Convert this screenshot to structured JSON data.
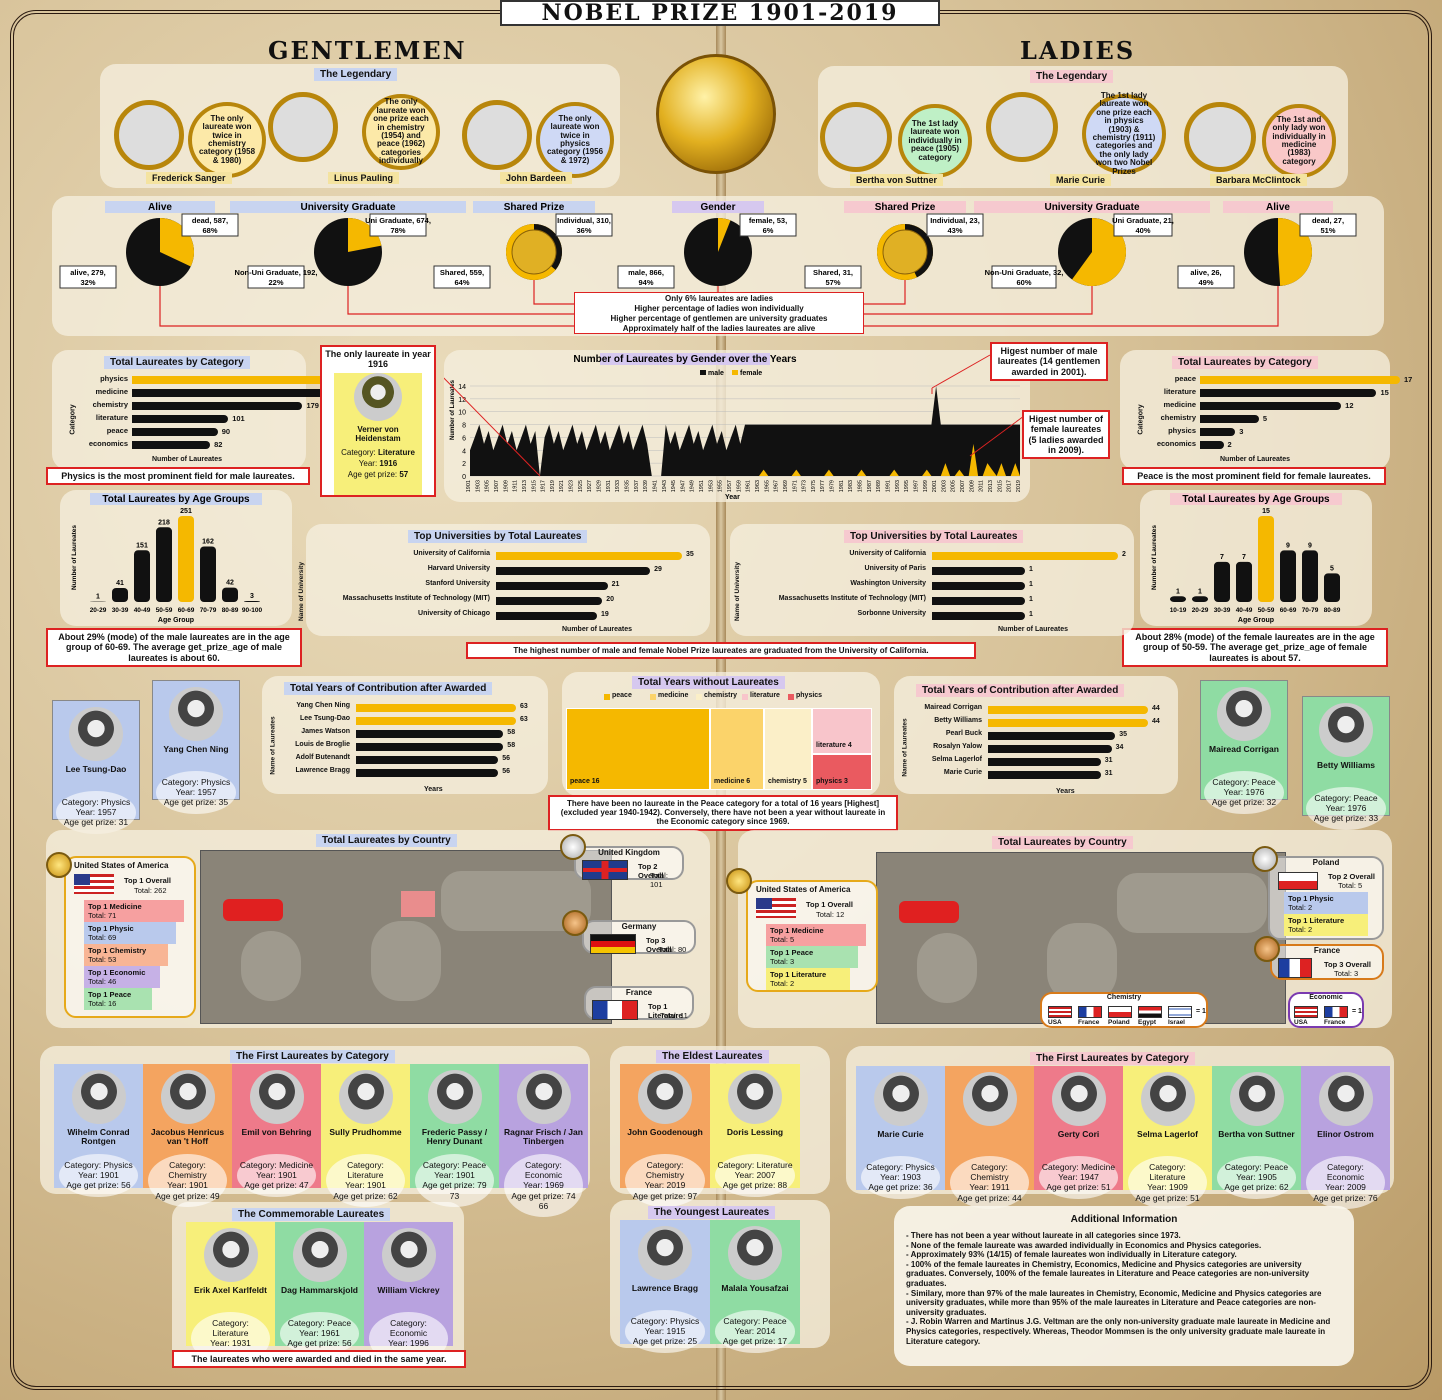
{
  "header": {
    "title": "NOBEL PRIZE 1901-2019",
    "left": "GENTLEMEN",
    "right": "LADIES"
  },
  "legendary": {
    "title": "The Legendary",
    "men": [
      {
        "name": "Frederick Sanger",
        "text": "The only laureate won twice in chemistry category (1958 & 1980)"
      },
      {
        "name": "Linus Pauling",
        "text": "The only laureate won one prize each in chemistry (1954) and peace (1962) categories individually"
      },
      {
        "name": "John Bardeen",
        "text": "The only laureate won twice in physics category (1956 & 1972)"
      }
    ],
    "women": [
      {
        "name": "Bertha von Suttner",
        "text": "The 1st lady laureate won individually in peace (1905) category"
      },
      {
        "name": "Marie Curie",
        "text": "The 1st lady laureate won one prize each in physics (1903) & chemistry (1911) categories and the only lady won two Nobel Prizes"
      },
      {
        "name": "Barbara McClintock",
        "text": "The 1st and only lady won individually in medicine (1983) category"
      }
    ]
  },
  "pies": [
    {
      "title": "Alive",
      "a": "dead, 587, 68%",
      "b": "alive, 279, 32%",
      "frac": 0.32
    },
    {
      "title": "University Graduate",
      "a": "Uni Graduate, 674, 78%",
      "b": "Non-Uni Graduate, 192, 22%",
      "frac": 0.22
    },
    {
      "title": "Shared Prize",
      "a": "Individual, 310, 36%",
      "b": "Shared, 559, 64%",
      "frac": 0.36
    },
    {
      "title": "Gender",
      "a": "female, 53, 6%",
      "b": "male, 866, 94%",
      "frac": 0.06
    },
    {
      "title": "Shared Prize",
      "a": "Individual, 23, 43%",
      "b": "Shared, 31, 57%",
      "frac": 0.43
    },
    {
      "title": "University Graduate",
      "a": "Uni Graduate, 21, 40%",
      "b": "Non-Uni Graduate, 32, 60%",
      "frac": 0.6
    },
    {
      "title": "Alive",
      "a": "dead, 27, 51%",
      "b": "alive, 26, 49%",
      "frac": 0.49
    }
  ],
  "pie_summary": [
    "Only 6% laureates are ladies",
    "Higher percentage of ladies won individually",
    "Higher percentage of gentlemen are university graduates",
    "Approximately half of the ladies laureates are alive"
  ],
  "chart_data": [
    {
      "type": "bar",
      "title": "Total Laureates by Category",
      "ylabel": "Category",
      "xlabel": "Number of Laureates",
      "categories": [
        "physics",
        "medicine",
        "chemistry",
        "literature",
        "peace",
        "economics"
      ],
      "values": [
        210,
        207,
        179,
        101,
        90,
        82
      ]
    },
    {
      "type": "bar",
      "title": "Total Laureates by Category",
      "ylabel": "Category",
      "xlabel": "Number of Laureates",
      "categories": [
        "peace",
        "literature",
        "medicine",
        "chemistry",
        "physics",
        "economics"
      ],
      "values": [
        17,
        15,
        12,
        5,
        3,
        2
      ]
    },
    {
      "type": "area",
      "title": "Number of Laureates by Gender over the Years",
      "xlabel": "Year",
      "ylabel": "Number of Laureates",
      "series": [
        {
          "name": "male"
        },
        {
          "name": "female"
        }
      ],
      "ylim": [
        0,
        14
      ],
      "x_ticks": [
        "1901",
        "1903",
        "1905",
        "1907",
        "1909",
        "1911",
        "1913",
        "1915",
        "1917",
        "1919",
        "1921",
        "1923",
        "1925",
        "1927",
        "1929",
        "1931",
        "1933",
        "1935",
        "1937",
        "1939",
        "1941",
        "1943",
        "1945",
        "1947",
        "1949",
        "1951",
        "1953",
        "1955",
        "1957",
        "1959",
        "1961",
        "1963",
        "1965",
        "1967",
        "1969",
        "1971",
        "1973",
        "1975",
        "1977",
        "1979",
        "1981",
        "1983",
        "1985",
        "1987",
        "1989",
        "1991",
        "1993",
        "1995",
        "1997",
        "1999",
        "2001",
        "2003",
        "2005",
        "2007",
        "2009",
        "2011",
        "2013",
        "2015",
        "2017",
        "2019"
      ],
      "y_ticks": [
        "0",
        "2",
        "4",
        "6",
        "8",
        "10",
        "12",
        "14"
      ]
    },
    {
      "type": "bar",
      "title": "Total Laureates by Age Groups",
      "xlabel": "Age Group",
      "ylabel": "Number of Laureates",
      "categories": [
        "20-29",
        "30-39",
        "40-49",
        "50-59",
        "60-69",
        "70-79",
        "80-89",
        "90-100"
      ],
      "values": [
        1,
        41,
        151,
        218,
        251,
        162,
        42,
        3
      ]
    },
    {
      "type": "bar",
      "title": "Total Laureates by Age Groups",
      "xlabel": "Age Group",
      "ylabel": "Number of Laureates",
      "categories": [
        "10-19",
        "20-29",
        "30-39",
        "40-49",
        "50-59",
        "60-69",
        "70-79",
        "80-89"
      ],
      "values": [
        1,
        1,
        7,
        7,
        15,
        9,
        9,
        5
      ]
    },
    {
      "type": "bar",
      "title": "Top Universities by Total Laureates",
      "xlabel": "Number of Laureates",
      "ylabel": "Name of University",
      "categories": [
        "University of California",
        "Harvard University",
        "Stanford University",
        "Massachusetts Institute of Technology (MIT)",
        "University of Chicago"
      ],
      "values": [
        35,
        29,
        21,
        20,
        19
      ]
    },
    {
      "type": "bar",
      "title": "Top Universities by Total Laureates",
      "xlabel": "Number of Laureates",
      "ylabel": "Name of University",
      "categories": [
        "University of California",
        "University of Paris",
        "Washington University",
        "Massachusetts Institute of Technology (MIT)",
        "Sorbonne University"
      ],
      "values": [
        2,
        1,
        1,
        1,
        1
      ]
    },
    {
      "type": "bar",
      "title": "Total Years of Contribution after Awarded",
      "xlabel": "Years",
      "ylabel": "Name of Laureates",
      "categories": [
        "Yang Chen Ning",
        "Lee Tsung-Dao",
        "James Watson",
        "Louis de Broglie",
        "Adolf Butenandt",
        "Lawrence Bragg"
      ],
      "values": [
        63,
        63,
        58,
        58,
        56,
        56
      ]
    },
    {
      "type": "bar",
      "title": "Total Years of Contribution after Awarded",
      "xlabel": "Years",
      "ylabel": "Name of Laureates",
      "categories": [
        "Mairead Corrigan",
        "Betty Williams",
        "Pearl Buck",
        "Rosalyn Yalow",
        "Selma Lagerlof",
        "Marie Curie"
      ],
      "values": [
        44,
        44,
        35,
        34,
        31,
        31
      ]
    },
    {
      "type": "heatmap",
      "title": "Total Years without Laureates",
      "categories": [
        "peace",
        "medicine",
        "chemistry",
        "literature",
        "physics"
      ],
      "values": [
        16,
        6,
        5,
        4,
        3
      ]
    }
  ],
  "notes": {
    "male_cat": "Physics is the most prominent field for male laureates.",
    "female_cat": "Peace is the most prominent field for female laureates.",
    "only1916": "The only laureate in year 1916",
    "max_male": "Higest number of male laureates (14 gentlemen awarded in 2001).",
    "max_female": "Higest number of female laureates (5 ladies awarded in 2009).",
    "age_male": "About 29% (mode) of the male laureates are in the age group of 60-69. The average get_prize_age of male laureates is about 60.",
    "age_female": "About 28% (mode) of the female laureates are in the age group of 50-59. The average get_prize_age of female laureates is about 57.",
    "uni": "The highest number of male and female Nobel Prize laureates are graduated from the University of California.",
    "noyears": "There have been no laureate in the Peace category for a total of 16 years [Highest] (excluded year 1940-1942). Conversely, there have not been a year without laureate in the Economic category since 1969.",
    "commem": "The laureates who were awarded and died in the same year."
  },
  "treemap_labels": {
    "peace": "peace 16",
    "medicine": "medicine 6",
    "chemistry": "chemistry 5",
    "literature": "literature 4",
    "physics": "physics 3"
  },
  "country": {
    "title": "Total Laureates by Country",
    "men": {
      "usa": {
        "name": "United States of America",
        "top": "Top 1 Overall",
        "total": "Total: 262"
      },
      "subs": [
        [
          "Top 1 Medicine",
          "Total: 71"
        ],
        [
          "Top 1 Physic",
          "Total: 69"
        ],
        [
          "Top 1 Chemistry",
          "Total: 53"
        ],
        [
          "Top 1 Economic",
          "Total: 46"
        ],
        [
          "Top 1 Peace",
          "Total: 16"
        ]
      ],
      "uk": {
        "name": "United Kingdom",
        "top": "Top 2 Overall",
        "total": "Total: 101"
      },
      "de": {
        "name": "Germany",
        "top": "Top 3 Overall",
        "total": "Total: 80"
      },
      "fr": {
        "name": "France",
        "top": "Top 1 Literature",
        "total": "Total: 11"
      }
    },
    "women": {
      "usa": {
        "name": "United States of America",
        "top": "Top 1 Overall",
        "total": "Total: 12"
      },
      "subs": [
        [
          "Top 1 Medicine",
          "Total: 5"
        ],
        [
          "Top 1 Peace",
          "Total: 3"
        ],
        [
          "Top 1 Literature",
          "Total: 2"
        ]
      ],
      "pl": {
        "name": "Poland",
        "top": "Top 2 Overall",
        "total": "Total: 5"
      },
      "plsubs": [
        [
          "Top 1 Physic",
          "Total: 2"
        ],
        [
          "Top 1 Literature",
          "Total: 2"
        ]
      ],
      "fr": {
        "name": "France",
        "top": "Top 3 Overall",
        "total": "Total: 3"
      },
      "chem": {
        "title": "Chemistry",
        "flags": [
          "USA",
          "France",
          "Poland",
          "Egypt",
          "Israel"
        ],
        "eq": "= 1"
      },
      "econ": {
        "title": "Economic",
        "flags": [
          "USA",
          "France"
        ],
        "eq": "= 1"
      }
    }
  },
  "first_men": {
    "title": "The First Laureates by Category",
    "items": [
      {
        "name": "Wihelm Conrad Rontgen",
        "cat": "Physics",
        "year": "1901",
        "age": "56",
        "color": "#b9c9ec"
      },
      {
        "name": "Jacobus Henricus van 't Hoff",
        "cat": "Chemistry",
        "year": "1901",
        "age": "49",
        "color": "#f4a460"
      },
      {
        "name": "Emil von Behring",
        "cat": "Medicine",
        "year": "1901",
        "age": "47",
        "color": "#ee7a8a"
      },
      {
        "name": "Sully Prudhomme",
        "cat": "Literature",
        "year": "1901",
        "age": "62",
        "color": "#f7ef7a"
      },
      {
        "name": "Frederic Passy / Henry Dunant",
        "cat": "Peace",
        "year": "1901",
        "age": "79 73",
        "color": "#8fdca3"
      },
      {
        "name": "Ragnar Frisch / Jan Tinbergen",
        "cat": "Economic",
        "year": "1969",
        "age": "74 66",
        "color": "#b8a2df"
      }
    ]
  },
  "first_women": {
    "title": "The First Laureates by Category",
    "items": [
      {
        "name": "Marie Curie",
        "cat": "Physics",
        "year": "1903",
        "age": "36",
        "color": "#b9c9ec"
      },
      {
        "name": "",
        "cat": "Chemistry",
        "year": "1911",
        "age": "44",
        "color": "#f4a460"
      },
      {
        "name": "Gerty Cori",
        "cat": "Medicine",
        "year": "1947",
        "age": "51",
        "color": "#ee7a8a"
      },
      {
        "name": "Selma Lagerlof",
        "cat": "Literature",
        "year": "1909",
        "age": "51",
        "color": "#f7ef7a"
      },
      {
        "name": "Bertha von Suttner",
        "cat": "Peace",
        "year": "1905",
        "age": "62",
        "color": "#8fdca3"
      },
      {
        "name": "Elinor Ostrom",
        "cat": "Economic",
        "year": "2009",
        "age": "76",
        "color": "#b8a2df"
      }
    ]
  },
  "eldest": {
    "title": "The Eldest Laureates",
    "items": [
      {
        "name": "John Goodenough",
        "cat": "Chemistry",
        "year": "2019",
        "age": "97",
        "color": "#f4a460"
      },
      {
        "name": "Doris Lessing",
        "cat": "Literature",
        "year": "2007",
        "age": "88",
        "color": "#f7ef7a"
      }
    ]
  },
  "youngest": {
    "title": "The Youngest Laureates",
    "items": [
      {
        "name": "Lawrence Bragg",
        "cat": "Physics",
        "year": "1915",
        "age": "25",
        "color": "#b9c9ec"
      },
      {
        "name": "Malala Yousafzai",
        "cat": "Peace",
        "year": "2014",
        "age": "17",
        "color": "#8fdca3"
      }
    ]
  },
  "commem": {
    "title": "The Commemorable Laureates",
    "items": [
      {
        "name": "Erik Axel Karlfeldt",
        "cat": "Literature",
        "year": "1931",
        "age": "67",
        "color": "#f7ef7a"
      },
      {
        "name": "Dag Hammarskjold",
        "cat": "Peace",
        "year": "1961",
        "age": "56",
        "color": "#8fdca3"
      },
      {
        "name": "William Vickrey",
        "cat": "Economic",
        "year": "1996",
        "age": "82",
        "color": "#b8a2df"
      }
    ]
  },
  "contrib_cards": {
    "men": [
      {
        "name": "Lee Tsung-Dao",
        "cat": "Physics",
        "year": "1957",
        "age": "31"
      },
      {
        "name": "Yang Chen Ning",
        "cat": "Physics",
        "year": "1957",
        "age": "35"
      }
    ],
    "women": [
      {
        "name": "Mairead Corrigan",
        "cat": "Peace",
        "year": "1976",
        "age": "32"
      },
      {
        "name": "Betty Williams",
        "cat": "Peace",
        "year": "1976",
        "age": "33"
      }
    ]
  },
  "heidenstam": {
    "name": "Verner von Heidenstam",
    "cat": "Literature",
    "year": "1916",
    "age": "57"
  },
  "additional": {
    "title": "Additional Information",
    "lines": [
      "- There has not been a year without laureate in all categories since 1973.",
      "- None of the female laureate was awarded individually in Economics and Physics categories.",
      "- Approximately 93% (14/15) of female laureates won individually in Literature category.",
      "- 100% of the female laureates in Chemistry, Economics, Medicine and Physics categories are university graduates. Conversely, 100% of the female laureates in Literature and Peace categories are non-university graduates.",
      "- Similary, more than 97% of the male laureates in Chemistry, Economic, Medicine and Physics categories are university graduates, while more than 95% of the male laureates in Literature and Peace categories are non-university graduates.",
      "- J. Robin Warren and Martinus J.G. Veltman are the only non-university graduate male laureate in Medicine and Physics categories, respectively. Whereas, Theodor Mommsen is the only university graduate male laureate in Literature category."
    ]
  },
  "labels": {
    "category": "Category: ",
    "year": "Year: ",
    "age": "Age get prize: "
  }
}
